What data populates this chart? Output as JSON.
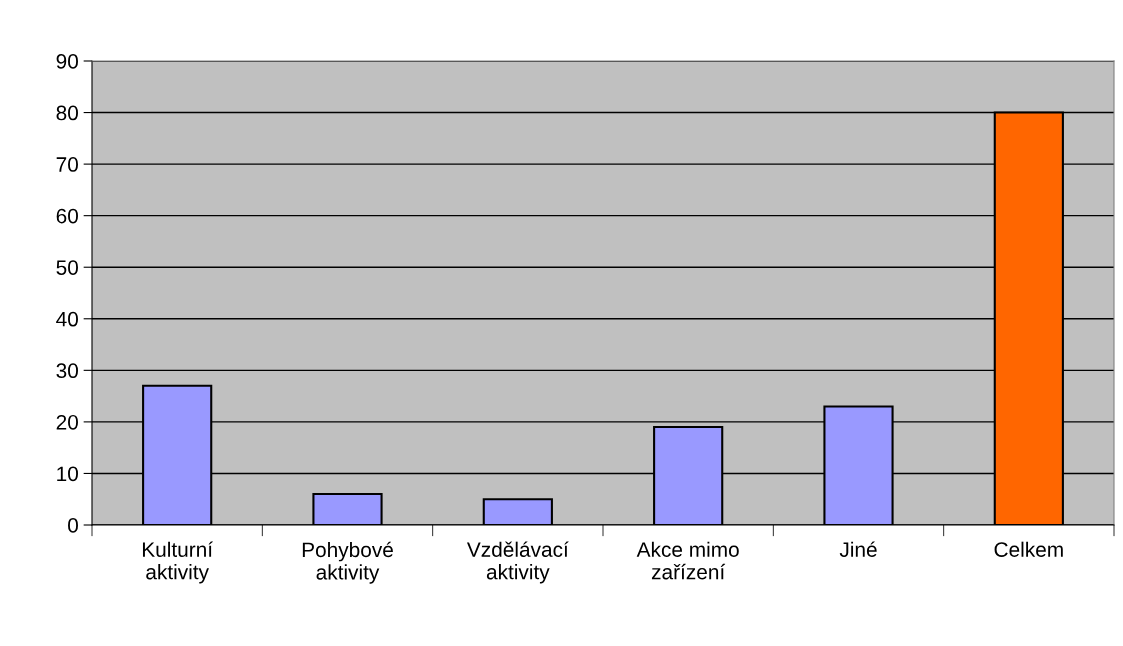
{
  "chart_data": {
    "type": "bar",
    "categories": [
      "Kulturní\naktivity",
      "Pohybové\naktivity",
      "Vzdělávací\naktivity",
      "Akce mimo\nzařízení",
      "Jiné",
      "Celkem"
    ],
    "values": [
      27,
      6,
      5,
      19,
      23,
      80
    ],
    "colors": [
      "#9999ff",
      "#9999ff",
      "#9999ff",
      "#9999ff",
      "#9999ff",
      "#ff6600"
    ],
    "ylim": [
      0,
      90
    ],
    "yticks": [
      0,
      10,
      20,
      30,
      40,
      50,
      60,
      70,
      80,
      90
    ],
    "grid": "y",
    "legend": false
  }
}
